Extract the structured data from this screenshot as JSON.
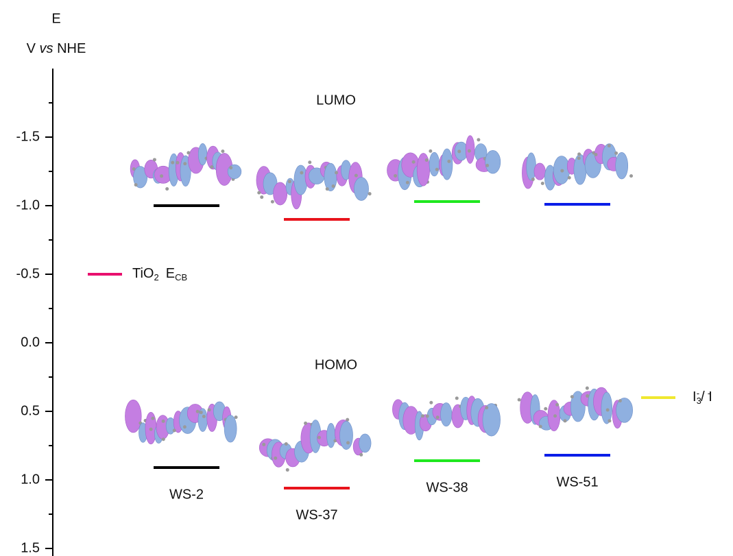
{
  "chart_data": {
    "type": "energy-level",
    "ylabel": "E",
    "ylabel_parts": [
      "V",
      "vs",
      "NHE"
    ],
    "ylim": [
      -2.0,
      1.5
    ],
    "yticks": [
      -1.5,
      {
        "value": -1,
        "label": "-1.0"
      },
      -0.5,
      {
        "value": 0,
        "label": "0.0"
      },
      0.5,
      {
        "value": 1,
        "label": "1.0"
      },
      1.5
    ],
    "yminor": [
      -1.75,
      -1.25,
      -0.75,
      -0.25,
      0.25,
      0.75,
      1.25
    ],
    "categories": [
      "WS-2",
      "WS-37",
      "WS-38",
      "WS-51"
    ],
    "colors": [
      "#000000",
      "#e8141c",
      "#1fe81f",
      "#0a1ee8"
    ],
    "series": [
      {
        "name": "LUMO",
        "values": [
          -1.0,
          -0.9,
          -1.03,
          -1.01
        ]
      },
      {
        "name": "HOMO",
        "values": [
          0.91,
          1.06,
          0.86,
          0.82
        ]
      }
    ],
    "references": [
      {
        "parts": [
          "TiO",
          "2",
          "E",
          "CB"
        ],
        "value": -0.5,
        "color": "#e8106e"
      },
      {
        "parts": [
          "I",
          "3",
          "-",
          "/ I",
          "-"
        ],
        "value": 0.4,
        "color": "#f0e830"
      }
    ]
  }
}
